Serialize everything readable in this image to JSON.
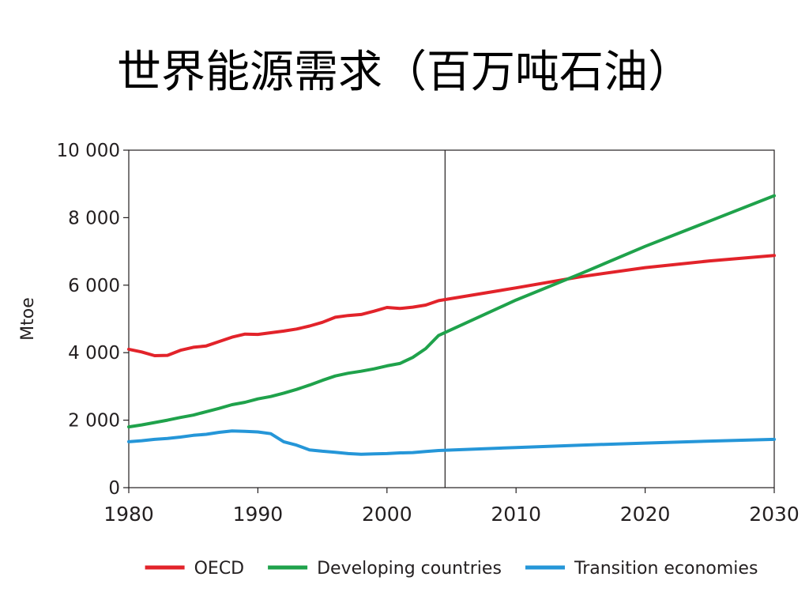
{
  "slide_title": "世界能源需求（百万吨石油）",
  "chart_data": {
    "type": "line",
    "ylabel": "Mtoe",
    "xlim": [
      1980,
      2030
    ],
    "ylim": [
      0,
      10000
    ],
    "x_ticks": [
      {
        "value": 1980,
        "label": "1980"
      },
      {
        "value": 1990,
        "label": "1990"
      },
      {
        "value": 2000,
        "label": "2000"
      },
      {
        "value": 2010,
        "label": "2010"
      },
      {
        "value": 2020,
        "label": "2020"
      },
      {
        "value": 2030,
        "label": "2030"
      }
    ],
    "y_ticks": [
      {
        "value": 0,
        "label": "0"
      },
      {
        "value": 2000,
        "label": "2 000"
      },
      {
        "value": 4000,
        "label": "4 000"
      },
      {
        "value": 6000,
        "label": "6 000"
      },
      {
        "value": 8000,
        "label": "8 000"
      },
      {
        "value": 10000,
        "label": "10 000"
      }
    ],
    "grid": false,
    "legend_position": "bottom",
    "vertical_marker_x": 2004.5,
    "series": [
      {
        "name": "OECD",
        "color": "#e2232a",
        "points": [
          [
            1980,
            4100
          ],
          [
            1981,
            4020
          ],
          [
            1982,
            3910
          ],
          [
            1983,
            3920
          ],
          [
            1984,
            4070
          ],
          [
            1985,
            4160
          ],
          [
            1986,
            4200
          ],
          [
            1987,
            4330
          ],
          [
            1988,
            4460
          ],
          [
            1989,
            4550
          ],
          [
            1990,
            4540
          ],
          [
            1991,
            4590
          ],
          [
            1992,
            4640
          ],
          [
            1993,
            4700
          ],
          [
            1994,
            4790
          ],
          [
            1995,
            4900
          ],
          [
            1996,
            5050
          ],
          [
            1997,
            5100
          ],
          [
            1998,
            5130
          ],
          [
            1999,
            5230
          ],
          [
            2000,
            5340
          ],
          [
            2001,
            5310
          ],
          [
            2002,
            5350
          ],
          [
            2003,
            5410
          ],
          [
            2004,
            5540
          ],
          [
            2010,
            5920
          ],
          [
            2015,
            6250
          ],
          [
            2020,
            6520
          ],
          [
            2025,
            6720
          ],
          [
            2030,
            6880
          ]
        ]
      },
      {
        "name": "Developing countries",
        "color": "#1fa24b",
        "points": [
          [
            1980,
            1800
          ],
          [
            1981,
            1860
          ],
          [
            1982,
            1930
          ],
          [
            1983,
            2000
          ],
          [
            1984,
            2080
          ],
          [
            1985,
            2150
          ],
          [
            1986,
            2250
          ],
          [
            1987,
            2350
          ],
          [
            1988,
            2460
          ],
          [
            1989,
            2530
          ],
          [
            1990,
            2630
          ],
          [
            1991,
            2700
          ],
          [
            1992,
            2800
          ],
          [
            1993,
            2910
          ],
          [
            1994,
            3040
          ],
          [
            1995,
            3180
          ],
          [
            1996,
            3310
          ],
          [
            1997,
            3390
          ],
          [
            1998,
            3450
          ],
          [
            1999,
            3520
          ],
          [
            2000,
            3610
          ],
          [
            2001,
            3680
          ],
          [
            2002,
            3860
          ],
          [
            2003,
            4120
          ],
          [
            2004,
            4510
          ],
          [
            2010,
            5560
          ],
          [
            2015,
            6340
          ],
          [
            2020,
            7150
          ],
          [
            2025,
            7900
          ],
          [
            2030,
            8650
          ]
        ]
      },
      {
        "name": "Transition economies",
        "color": "#2596d8",
        "points": [
          [
            1980,
            1360
          ],
          [
            1981,
            1390
          ],
          [
            1982,
            1430
          ],
          [
            1983,
            1460
          ],
          [
            1984,
            1500
          ],
          [
            1985,
            1550
          ],
          [
            1986,
            1580
          ],
          [
            1987,
            1640
          ],
          [
            1988,
            1680
          ],
          [
            1989,
            1670
          ],
          [
            1990,
            1650
          ],
          [
            1991,
            1600
          ],
          [
            1992,
            1360
          ],
          [
            1993,
            1260
          ],
          [
            1994,
            1120
          ],
          [
            1995,
            1080
          ],
          [
            1996,
            1050
          ],
          [
            1997,
            1010
          ],
          [
            1998,
            990
          ],
          [
            1999,
            1000
          ],
          [
            2000,
            1010
          ],
          [
            2001,
            1030
          ],
          [
            2002,
            1040
          ],
          [
            2003,
            1070
          ],
          [
            2004,
            1100
          ],
          [
            2010,
            1190
          ],
          [
            2015,
            1260
          ],
          [
            2020,
            1320
          ],
          [
            2025,
            1380
          ],
          [
            2030,
            1430
          ]
        ]
      }
    ]
  }
}
